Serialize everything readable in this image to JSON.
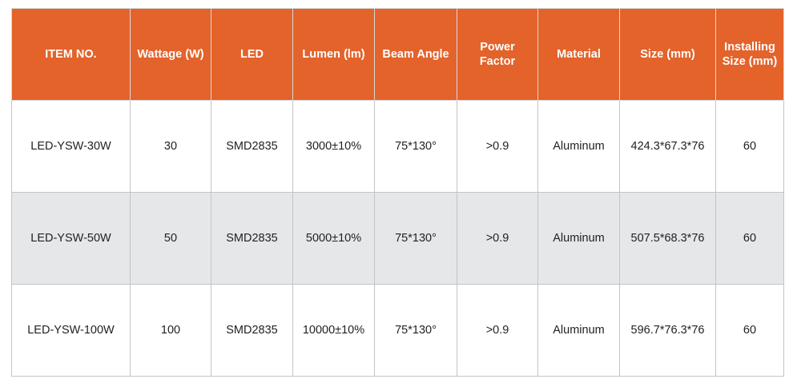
{
  "table": {
    "header": [
      "ITEM NO.",
      "Wattage (W)",
      "LED",
      "Lumen (lm)",
      "Beam Angle",
      "Power Factor",
      "Material",
      "Size (mm)",
      "Installing Size (mm)"
    ],
    "rows": [
      [
        "LED-YSW-30W",
        "30",
        "SMD2835",
        "3000±10%",
        "75*130°",
        ">0.9",
        "Aluminum",
        "424.3*67.3*76",
        "60"
      ],
      [
        "LED-YSW-50W",
        "50",
        "SMD2835",
        "5000±10%",
        "75*130°",
        ">0.9",
        "Aluminum",
        "507.5*68.3*76",
        "60"
      ],
      [
        "LED-YSW-100W",
        "100",
        "SMD2835",
        "10000±10%",
        "75*130°",
        ">0.9",
        "Aluminum",
        "596.7*76.3*76",
        "60"
      ]
    ]
  }
}
